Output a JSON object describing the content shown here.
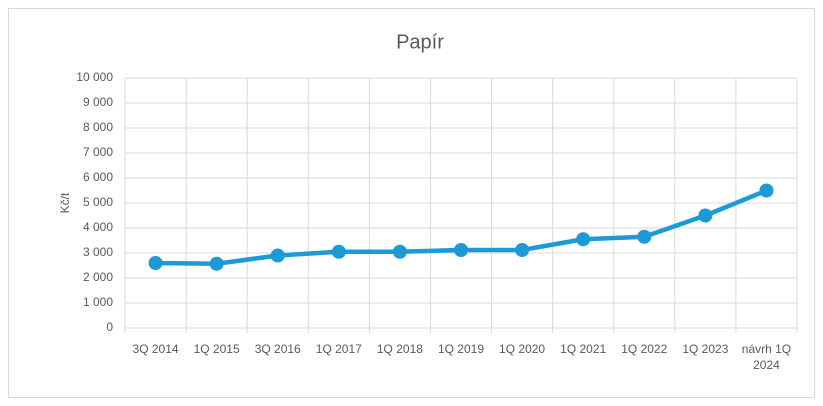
{
  "chart_data": {
    "type": "line",
    "title": "Papír",
    "y_label": "Kč/t",
    "categories": [
      "3Q 2014",
      "1Q 2015",
      "3Q 2016",
      "1Q 2017",
      "1Q 2018",
      "1Q 2019",
      "1Q 2020",
      "1Q 2021",
      "1Q 2022",
      "1Q 2023",
      "návrh 1Q 2024"
    ],
    "series": [
      {
        "name": "Papír",
        "color": "#1b9ad6",
        "values": [
          2600,
          2570,
          2900,
          3050,
          3050,
          3120,
          3120,
          3550,
          3650,
          4500,
          5500
        ]
      }
    ],
    "ylim": [
      0,
      10000
    ],
    "yticks": [
      0,
      {
        "value": 1000,
        "label": "1 000"
      },
      {
        "value": 2000,
        "label": "2 000"
      },
      {
        "value": 3000,
        "label": "3 000"
      },
      {
        "value": 4000,
        "label": "4 000"
      },
      {
        "value": 5000,
        "label": "5 000"
      },
      {
        "value": 6000,
        "label": "6 000"
      },
      {
        "value": 7000,
        "label": "7 000"
      },
      {
        "value": 8000,
        "label": "8 000"
      },
      {
        "value": 9000,
        "label": "9 000"
      },
      {
        "value": 10000,
        "label": "10 000"
      }
    ],
    "grid": true
  }
}
